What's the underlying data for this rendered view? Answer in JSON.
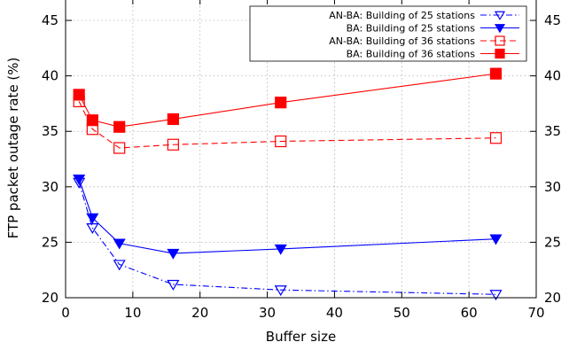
{
  "chart_data": {
    "type": "line",
    "xlabel": "Buffer size",
    "ylabel": "FTP packet outage rate (%)",
    "xlim": [
      0,
      70
    ],
    "ylim": [
      20,
      47
    ],
    "xticks": [
      0,
      10,
      20,
      30,
      40,
      50,
      60,
      70
    ],
    "yticks": [
      20,
      25,
      30,
      35,
      40,
      45
    ],
    "grid": true,
    "mirror_right_axis": true,
    "legend_position": "top-right",
    "series": [
      {
        "name": "AN-BA: Building of 25 stations",
        "color": "#0000ff",
        "line": "dashdot",
        "marker": "triangle-down-open",
        "x": [
          2,
          4,
          8,
          16,
          32,
          64
        ],
        "y": [
          30.4,
          26.3,
          23.0,
          21.2,
          20.7,
          20.3
        ]
      },
      {
        "name": "BA: Building of 25 stations",
        "color": "#0000ff",
        "line": "solid",
        "marker": "triangle-down-filled",
        "x": [
          2,
          4,
          8,
          16,
          32,
          64
        ],
        "y": [
          30.7,
          27.2,
          24.9,
          24.0,
          24.4,
          25.3
        ]
      },
      {
        "name": "AN-BA: Building of 36 stations",
        "color": "#ff0000",
        "line": "dashed",
        "marker": "square-open",
        "x": [
          2,
          4,
          8,
          16,
          32,
          64
        ],
        "y": [
          37.7,
          35.2,
          33.5,
          33.8,
          34.1,
          34.4
        ]
      },
      {
        "name": "BA: Building of 36 stations",
        "color": "#ff0000",
        "line": "solid",
        "marker": "square-filled",
        "x": [
          2,
          4,
          8,
          16,
          32,
          64
        ],
        "y": [
          38.3,
          36.0,
          35.4,
          36.1,
          37.6,
          40.2
        ]
      }
    ]
  }
}
